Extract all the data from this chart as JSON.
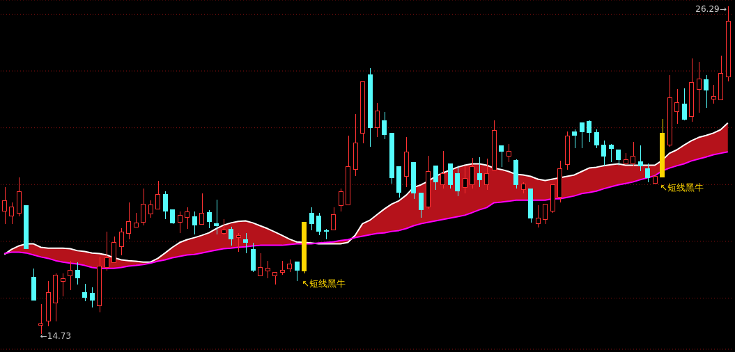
{
  "chart_data": {
    "type": "candlestick",
    "categories": [
      null,
      null,
      null,
      null,
      null,
      null,
      null,
      null,
      null,
      null,
      null,
      null,
      null,
      null,
      null,
      null,
      null,
      null,
      null,
      null,
      null,
      null,
      null,
      null,
      null,
      null,
      null,
      null,
      null,
      null,
      null,
      null,
      null,
      null,
      null,
      null,
      null,
      null,
      null,
      null,
      null,
      null,
      null,
      null,
      null,
      null,
      null,
      null,
      null,
      null,
      null,
      null,
      null,
      null,
      null,
      null,
      null,
      null,
      null,
      null,
      null,
      null,
      null,
      null,
      null,
      null,
      null,
      null,
      null,
      null,
      null,
      null,
      null,
      null,
      null,
      null,
      null,
      null,
      null,
      null,
      null,
      null,
      null,
      null,
      null,
      null,
      null,
      null,
      null,
      null,
      null,
      null,
      null,
      null,
      null,
      null,
      null,
      null,
      null,
      null
    ],
    "ohlc": [
      [
        19.06,
        19.92,
        18.62,
        19.43
      ],
      [
        18.89,
        19.38,
        18.62,
        19.21
      ],
      [
        18.99,
        20.26,
        18.87,
        19.75
      ],
      [
        19.26,
        19.26,
        17.74,
        17.74
      ],
      [
        16.74,
        17.03,
        15.93,
        15.93
      ],
      [
        15.04,
        15.8,
        14.73,
        15.09
      ],
      [
        15.19,
        16.61,
        15.0,
        16.2
      ],
      [
        15.83,
        16.88,
        15.19,
        16.81
      ],
      [
        16.59,
        16.86,
        16.05,
        16.69
      ],
      [
        16.78,
        17.32,
        16.29,
        16.98
      ],
      [
        16.98,
        17.27,
        16.47,
        16.71
      ],
      [
        16.2,
        16.51,
        15.88,
        16.02
      ],
      [
        16.17,
        16.37,
        15.68,
        15.93
      ],
      [
        15.73,
        17.47,
        15.51,
        17.13
      ],
      [
        17.08,
        18.33,
        16.96,
        17.42
      ],
      [
        17.25,
        18.18,
        17.23,
        17.96
      ],
      [
        17.81,
        18.47,
        17.52,
        18.33
      ],
      [
        18.28,
        19.38,
        18.06,
        18.7
      ],
      [
        18.5,
        19.01,
        18.5,
        18.65
      ],
      [
        18.67,
        19.85,
        18.55,
        19.31
      ],
      [
        18.96,
        19.45,
        18.82,
        19.28
      ],
      [
        19.14,
        20.14,
        19.14,
        19.65
      ],
      [
        19.65,
        19.75,
        18.79,
        19.06
      ],
      [
        19.11,
        19.11,
        18.6,
        18.65
      ],
      [
        18.67,
        19.04,
        18.3,
        18.92
      ],
      [
        18.84,
        19.19,
        18.43,
        19.04
      ],
      [
        18.87,
        19.04,
        18.25,
        18.57
      ],
      [
        18.6,
        19.68,
        18.6,
        18.99
      ],
      [
        19.01,
        19.11,
        18.47,
        18.7
      ],
      [
        18.62,
        19.48,
        18.25,
        18.55
      ],
      [
        18.28,
        18.77,
        18.21,
        18.4
      ],
      [
        18.43,
        18.52,
        17.86,
        18.08
      ],
      [
        18.13,
        18.28,
        17.62,
        18.21
      ],
      [
        18.06,
        18.28,
        17.57,
        17.96
      ],
      [
        17.72,
        17.96,
        16.93,
        16.98
      ],
      [
        16.78,
        17.59,
        16.78,
        17.08
      ],
      [
        16.96,
        17.32,
        16.69,
        17.05
      ],
      [
        16.78,
        16.91,
        16.47,
        16.91
      ],
      [
        16.91,
        17.3,
        16.81,
        16.98
      ],
      [
        17.03,
        17.37,
        16.91,
        17.2
      ],
      [
        17.27,
        17.27,
        16.61,
        16.98
      ],
      [
        16.96,
        18.67,
        16.88,
        18.67
      ],
      [
        18.99,
        19.19,
        18.4,
        18.62
      ],
      [
        18.89,
        19.01,
        18.21,
        18.35
      ],
      [
        18.38,
        18.45,
        18.08,
        18.38
      ],
      [
        18.4,
        19.21,
        18.38,
        18.94
      ],
      [
        19.26,
        19.87,
        19.04,
        19.75
      ],
      [
        19.28,
        21.71,
        19.28,
        20.63
      ],
      [
        20.53,
        22.49,
        20.31,
        21.46
      ],
      [
        21.81,
        23.62,
        21.46,
        23.62
      ],
      [
        23.86,
        24.09,
        21.32,
        22.0
      ],
      [
        22.0,
        22.88,
        21.68,
        22.59
      ],
      [
        22.25,
        22.56,
        21.61,
        21.76
      ],
      [
        21.81,
        21.81,
        20.02,
        20.24
      ],
      [
        20.63,
        20.63,
        19.55,
        19.72
      ],
      [
        20.29,
        21.68,
        19.92,
        21.15
      ],
      [
        20.78,
        20.78,
        19.5,
        19.7
      ],
      [
        19.7,
        19.7,
        18.84,
        19.11
      ],
      [
        19.21,
        21.0,
        19.14,
        20.46
      ],
      [
        20.66,
        20.68,
        19.82,
        20.09
      ],
      [
        19.99,
        21.19,
        19.85,
        20.39
      ],
      [
        20.73,
        20.73,
        19.85,
        19.99
      ],
      [
        20.39,
        20.66,
        19.6,
        19.77
      ],
      [
        19.9,
        20.66,
        19.7,
        20.21
      ],
      [
        19.99,
        20.95,
        19.87,
        20.63
      ],
      [
        20.39,
        20.97,
        19.92,
        20.17
      ],
      [
        19.99,
        20.92,
        19.8,
        20.39
      ],
      [
        20.51,
        22.27,
        20.51,
        21.9
      ],
      [
        21.37,
        21.39,
        20.63,
        21.17
      ],
      [
        21.0,
        21.44,
        20.78,
        21.17
      ],
      [
        20.85,
        20.9,
        19.87,
        19.99
      ],
      [
        19.82,
        20.07,
        19.7,
        20.02
      ],
      [
        19.85,
        19.85,
        18.67,
        18.82
      ],
      [
        18.62,
        19.26,
        18.5,
        18.82
      ],
      [
        18.77,
        19.31,
        18.6,
        19.31
      ],
      [
        19.06,
        19.99,
        19.01,
        19.99
      ],
      [
        19.55,
        20.85,
        19.38,
        20.56
      ],
      [
        20.7,
        21.88,
        20.53,
        21.71
      ],
      [
        21.86,
        21.95,
        21.29,
        21.73
      ],
      [
        22.17,
        22.17,
        21.27,
        21.86
      ],
      [
        22.22,
        22.27,
        21.51,
        21.83
      ],
      [
        21.83,
        21.95,
        21.29,
        21.39
      ],
      [
        21.39,
        21.56,
        20.68,
        21.0
      ],
      [
        21.39,
        21.44,
        20.8,
        21.27
      ],
      [
        21.22,
        21.22,
        20.66,
        20.88
      ],
      [
        20.73,
        21.1,
        20.7,
        20.88
      ],
      [
        20.73,
        21.49,
        20.66,
        21.0
      ],
      [
        20.8,
        21.39,
        20.48,
        20.66
      ],
      [
        20.56,
        20.75,
        20.09,
        20.24
      ],
      [
        20.04,
        20.36,
        20.02,
        20.29
      ],
      [
        20.26,
        22.32,
        20.26,
        21.81
      ],
      [
        21.39,
        23.86,
        21.32,
        23.06
      ],
      [
        22.56,
        23.37,
        22.13,
        22.88
      ],
      [
        22.84,
        23.4,
        22.27,
        22.3
      ],
      [
        22.39,
        24.45,
        22.22,
        23.6
      ],
      [
        23.35,
        24.33,
        22.52,
        23.72
      ],
      [
        23.69,
        23.86,
        22.71,
        23.33
      ],
      [
        23.01,
        23.5,
        22.86,
        23.11
      ],
      [
        22.98,
        24.55,
        22.98,
        23.91
      ],
      [
        23.79,
        26.29,
        23.64,
        25.75
      ]
    ],
    "colors": [
      "#ff3232",
      "#ff3232",
      "#ff3232",
      "#54fcfc",
      "#54fcfc",
      "#ff3232",
      "#ff3232",
      "#ff3232",
      "#ff3232",
      "#ff3232",
      "#54fcfc",
      "#54fcfc",
      "#54fcfc",
      "#ff3232",
      "#ff3232",
      "#ff3232",
      "#ff3232",
      "#ff3232",
      "#ff3232",
      "#ff3232",
      "#ff3232",
      "#ff3232",
      "#54fcfc",
      "#54fcfc",
      "#ff3232",
      "#ff3232",
      "#54fcfc",
      "#ff3232",
      "#54fcfc",
      "#54fcfc",
      "#ff3232",
      "#54fcfc",
      "#ff3232",
      "#54fcfc",
      "#54fcfc",
      "#ff3232",
      "#ff3232",
      "#ff3232",
      "#ff3232",
      "#ff3232",
      "#54fcfc",
      "#ffd700",
      "#54fcfc",
      "#54fcfc",
      "#54fcfc",
      "#ff3232",
      "#ff3232",
      "#ff3232",
      "#ff3232",
      "#ff3232",
      "#54fcfc",
      "#ff3232",
      "#54fcfc",
      "#54fcfc",
      "#54fcfc",
      "#ff3232",
      "#54fcfc",
      "#54fcfc",
      "#ff3232",
      "#54fcfc",
      "#ff3232",
      "#54fcfc",
      "#54fcfc",
      "#ff3232",
      "#ff3232",
      "#54fcfc",
      "#ff3232",
      "#ff3232",
      "#54fcfc",
      "#ff3232",
      "#54fcfc",
      "#ff3232",
      "#54fcfc",
      "#ff3232",
      "#ff3232",
      "#ff3232",
      "#ff3232",
      "#ff3232",
      "#54fcfc",
      "#54fcfc",
      "#54fcfc",
      "#54fcfc",
      "#54fcfc",
      "#54fcfc",
      "#54fcfc",
      "#ff3232",
      "#ff3232",
      "#54fcfc",
      "#54fcfc",
      "#ff3232",
      "#ffd700",
      "#ff3232",
      "#ff3232",
      "#54fcfc",
      "#ff3232",
      "#ff3232",
      "#54fcfc",
      "#ff3232",
      "#ff3232",
      "#ff3232"
    ],
    "series": [
      {
        "type": "line",
        "color": "#ffffff",
        "values": [
          17.54,
          17.72,
          17.84,
          17.91,
          17.91,
          17.79,
          17.76,
          17.76,
          17.76,
          17.74,
          17.67,
          17.64,
          17.59,
          17.57,
          17.52,
          17.42,
          17.35,
          17.32,
          17.3,
          17.27,
          17.27,
          17.4,
          17.59,
          17.79,
          17.96,
          18.06,
          18.13,
          18.21,
          18.3,
          18.45,
          18.57,
          18.65,
          18.7,
          18.72,
          18.65,
          18.55,
          18.45,
          18.33,
          18.21,
          18.08,
          17.98,
          17.96,
          17.94,
          17.91,
          17.91,
          17.91,
          17.91,
          17.96,
          18.21,
          18.62,
          18.74,
          18.94,
          19.14,
          19.31,
          19.43,
          19.63,
          19.9,
          19.99,
          20.12,
          20.29,
          20.41,
          20.51,
          20.61,
          20.68,
          20.73,
          20.73,
          20.68,
          20.58,
          20.53,
          20.46,
          20.36,
          20.34,
          20.29,
          20.19,
          20.14,
          20.19,
          20.24,
          20.29,
          20.34,
          20.46,
          20.58,
          20.61,
          20.66,
          20.7,
          20.73,
          20.68,
          20.68,
          20.68,
          20.68,
          20.68,
          20.85,
          21.1,
          21.22,
          21.39,
          21.54,
          21.66,
          21.73,
          21.81,
          21.93,
          22.17
        ],
        "upper": [
          17.54,
          17.72,
          17.84,
          17.91,
          17.91,
          17.79,
          17.76,
          17.76,
          17.76,
          17.74,
          17.67,
          17.64,
          17.59,
          17.57,
          17.52,
          17.42,
          17.35,
          17.32,
          17.3,
          17.27,
          17.27,
          17.4,
          17.59,
          17.79,
          17.96,
          18.06,
          18.13,
          18.21,
          18.3,
          18.45,
          18.57,
          18.65,
          18.7,
          18.72,
          18.65,
          18.55,
          18.45,
          18.33,
          18.21,
          18.08,
          17.98,
          17.96,
          17.94,
          17.91,
          17.91,
          17.91,
          17.91,
          17.96,
          18.21,
          18.62,
          18.74,
          18.94,
          19.14,
          19.31,
          19.43,
          19.63,
          19.9,
          19.99,
          20.12,
          20.29,
          20.41,
          20.51,
          20.61,
          20.68,
          20.73,
          20.73,
          20.68,
          20.58,
          20.53,
          20.46,
          20.36,
          20.34,
          20.29,
          20.19,
          20.14,
          20.19,
          20.24,
          20.29,
          20.34,
          20.46,
          20.58,
          20.61,
          20.66,
          20.7,
          20.73,
          20.68,
          20.68,
          20.68,
          20.68,
          20.68,
          20.85,
          21.1,
          21.22,
          21.39,
          21.54,
          21.66,
          21.73,
          21.81,
          21.93,
          22.17
        ],
        "lower": [
          17.57,
          17.62,
          17.62,
          17.59,
          17.52,
          17.45,
          17.4,
          17.32,
          17.27,
          17.23,
          17.2,
          17.15,
          17.08,
          17.05,
          17.05,
          17.05,
          17.08,
          17.13,
          17.15,
          17.18,
          17.23,
          17.3,
          17.35,
          17.42,
          17.47,
          17.52,
          17.54,
          17.59,
          17.64,
          17.69,
          17.74,
          17.76,
          17.79,
          17.81,
          17.84,
          17.86,
          17.86,
          17.86,
          17.86,
          17.89,
          17.91,
          17.91,
          17.91,
          17.94,
          17.96,
          17.98,
          18.03,
          18.06,
          18.13,
          18.18,
          18.23,
          18.28,
          18.3,
          18.35,
          18.38,
          18.45,
          18.55,
          18.62,
          18.67,
          18.72,
          18.77,
          18.82,
          18.87,
          18.92,
          19.01,
          19.11,
          19.19,
          19.36,
          19.38,
          19.41,
          19.45,
          19.45,
          19.45,
          19.45,
          19.45,
          19.5,
          19.5,
          19.55,
          19.6,
          19.68,
          19.72,
          19.77,
          19.85,
          19.92,
          19.99,
          20.04,
          20.09,
          20.17,
          20.24,
          20.31,
          20.48,
          20.58,
          20.66,
          20.73,
          20.83,
          20.9,
          20.97,
          21.05,
          21.1,
          21.15
        ]
      },
      {
        "type": "line",
        "color": "#ff00ff",
        "values": [
          17.57,
          17.62,
          17.62,
          17.59,
          17.52,
          17.45,
          17.4,
          17.32,
          17.27,
          17.23,
          17.2,
          17.15,
          17.08,
          17.05,
          17.05,
          17.05,
          17.08,
          17.13,
          17.15,
          17.18,
          17.23,
          17.3,
          17.35,
          17.42,
          17.47,
          17.52,
          17.54,
          17.59,
          17.64,
          17.69,
          17.74,
          17.76,
          17.79,
          17.81,
          17.84,
          17.86,
          17.86,
          17.86,
          17.86,
          17.89,
          17.91,
          17.91,
          17.91,
          17.94,
          17.96,
          17.98,
          18.03,
          18.06,
          18.13,
          18.18,
          18.23,
          18.28,
          18.3,
          18.35,
          18.38,
          18.45,
          18.55,
          18.62,
          18.67,
          18.72,
          18.77,
          18.82,
          18.87,
          18.92,
          19.01,
          19.11,
          19.19,
          19.36,
          19.38,
          19.41,
          19.45,
          19.45,
          19.45,
          19.45,
          19.45,
          19.5,
          19.5,
          19.55,
          19.6,
          19.68,
          19.72,
          19.77,
          19.85,
          19.92,
          19.99,
          20.04,
          20.09,
          20.17,
          20.24,
          20.31,
          20.48,
          20.58,
          20.66,
          20.73,
          20.83,
          20.9,
          20.97,
          21.05,
          21.1,
          21.15
        ]
      }
    ],
    "ylim": [
      14.2,
      26.5
    ],
    "yticks": [
      {
        "value": 16,
        "label": null
      },
      {
        "value": 18,
        "label": null
      },
      {
        "value": 20,
        "label": null
      },
      {
        "value": 22,
        "label": null
      },
      {
        "value": 24,
        "label": null
      },
      {
        "value": 26,
        "label": null
      }
    ],
    "grid": "y",
    "tick_labels": false,
    "annotations": [
      "↖短线黑牛",
      "↖短线黑牛",
      "26.29→",
      "←14.73"
    ]
  }
}
